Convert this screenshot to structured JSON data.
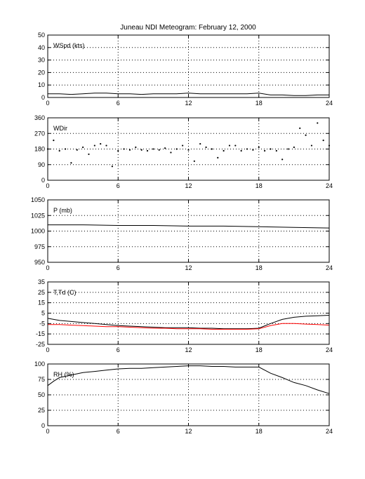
{
  "title": "Juneau NDI Meteogram:  February 12, 2000",
  "colors": {
    "series_primary": "#000000",
    "series_dewpoint": "#ff0000",
    "grid": "#000000"
  },
  "x_axis": {
    "range": [
      0,
      24
    ],
    "ticks": [
      0,
      6,
      12,
      18,
      24
    ],
    "tick_labels": [
      "0",
      "6",
      "12",
      "18",
      "24"
    ]
  },
  "chart_data": [
    {
      "type": "line",
      "label": "WSpd (kts)",
      "ylim": [
        0,
        50
      ],
      "yticks": [
        0,
        10,
        20,
        30,
        40,
        50
      ],
      "ytick_labels": [
        "0",
        "10",
        "20",
        "30",
        "40",
        "50"
      ],
      "grid": true,
      "series": [
        {
          "color": "#000000",
          "x": [
            0,
            1,
            2,
            3,
            4,
            5,
            6,
            7,
            8,
            9,
            10,
            11,
            12,
            13,
            14,
            15,
            16,
            17,
            18,
            19,
            20,
            21,
            22,
            23,
            24
          ],
          "y": [
            3,
            3,
            2.5,
            3,
            3.5,
            3.5,
            3,
            3,
            2.5,
            3,
            3,
            3,
            3.5,
            3,
            3,
            3,
            3,
            3,
            3.5,
            2,
            2,
            1.5,
            1.5,
            2,
            2
          ]
        }
      ]
    },
    {
      "type": "scatter",
      "label": "WDir",
      "ylim": [
        0,
        360
      ],
      "yticks": [
        0,
        90,
        180,
        270,
        360
      ],
      "ytick_labels": [
        "0",
        "90",
        "180",
        "270",
        "360"
      ],
      "grid": true,
      "series": [
        {
          "color": "#000000",
          "x": [
            0,
            0.5,
            1,
            1.5,
            2,
            2.5,
            3,
            3.5,
            4,
            4.5,
            5,
            5.5,
            6,
            6.5,
            7,
            7.5,
            8,
            8.5,
            9,
            9.5,
            10,
            10.5,
            11,
            11.5,
            12,
            12.5,
            13,
            13.5,
            14,
            14.5,
            15,
            15.5,
            16,
            16.5,
            17,
            17.5,
            18,
            18.5,
            19,
            19.5,
            20,
            20.5,
            21,
            21.5,
            22,
            22.5,
            23,
            23.5,
            24
          ],
          "y": [
            180,
            230,
            170,
            180,
            100,
            175,
            190,
            150,
            200,
            210,
            200,
            80,
            170,
            180,
            175,
            190,
            175,
            170,
            180,
            175,
            185,
            160,
            180,
            200,
            175,
            110,
            210,
            190,
            180,
            130,
            170,
            200,
            200,
            170,
            180,
            175,
            190,
            170,
            180,
            170,
            120,
            180,
            190,
            300,
            260,
            200,
            330,
            230,
            200
          ]
        }
      ]
    },
    {
      "type": "line",
      "label": "P (mb)",
      "ylim": [
        950,
        1050
      ],
      "yticks": [
        950,
        975,
        1000,
        1025,
        1050
      ],
      "ytick_labels": [
        "950",
        "975",
        "1000",
        "1025",
        "1050"
      ],
      "grid": true,
      "series": [
        {
          "color": "#000000",
          "x": [
            0,
            3,
            6,
            9,
            12,
            15,
            18,
            21,
            24
          ],
          "y": [
            1010,
            1010,
            1009,
            1009,
            1008,
            1008,
            1007,
            1006,
            1005
          ]
        }
      ]
    },
    {
      "type": "line",
      "label": "T,Td (C)",
      "ylim": [
        -25,
        35
      ],
      "yticks": [
        -25,
        -15,
        -5,
        5,
        15,
        25,
        35
      ],
      "ytick_labels": [
        "-25",
        "-15",
        "-5",
        "5",
        "15",
        "25",
        "35"
      ],
      "grid": true,
      "series": [
        {
          "color": "#000000",
          "x": [
            0,
            1,
            2,
            3,
            4,
            5,
            6,
            7,
            8,
            9,
            10,
            11,
            12,
            13,
            14,
            15,
            16,
            17,
            18,
            19,
            20,
            21,
            22,
            23,
            24
          ],
          "y": [
            0,
            -2,
            -3,
            -4,
            -5,
            -6,
            -7,
            -7.5,
            -8,
            -8.5,
            -9,
            -9,
            -9,
            -9.5,
            -9.5,
            -10,
            -10,
            -10,
            -9.5,
            -5,
            -1,
            1,
            2,
            2.5,
            3
          ]
        },
        {
          "color": "#ff0000",
          "x": [
            0,
            1,
            2,
            3,
            4,
            5,
            6,
            7,
            8,
            9,
            10,
            11,
            12,
            13,
            14,
            15,
            16,
            17,
            18,
            19,
            20,
            21,
            22,
            23,
            24
          ],
          "y": [
            -6,
            -6,
            -6.5,
            -7,
            -7.5,
            -8,
            -8,
            -8.5,
            -9,
            -9.5,
            -9.5,
            -10,
            -10,
            -10,
            -10.5,
            -10.5,
            -10.5,
            -10.5,
            -10,
            -7,
            -5,
            -5,
            -5.5,
            -6,
            -6.5
          ]
        }
      ]
    },
    {
      "type": "line",
      "label": "RH (%)",
      "ylim": [
        0,
        100
      ],
      "yticks": [
        0,
        25,
        50,
        75,
        100
      ],
      "ytick_labels": [
        "0",
        "25",
        "50",
        "75",
        "100"
      ],
      "grid": true,
      "series": [
        {
          "color": "#000000",
          "x": [
            0,
            0.5,
            1,
            2,
            3,
            4,
            5,
            6,
            7,
            8,
            9,
            10,
            11,
            12,
            13,
            14,
            15,
            16,
            17,
            18,
            19,
            20,
            21,
            22,
            23,
            24
          ],
          "y": [
            65,
            72,
            78,
            82,
            86,
            88,
            90,
            92,
            93,
            93,
            94,
            95,
            96,
            97,
            97,
            96,
            96,
            95,
            95,
            95,
            85,
            78,
            70,
            65,
            58,
            52
          ]
        }
      ]
    }
  ]
}
